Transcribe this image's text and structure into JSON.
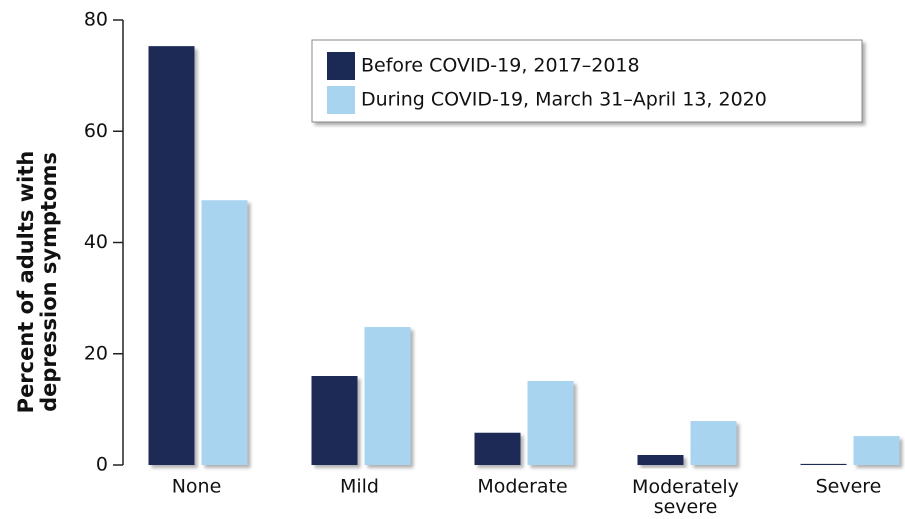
{
  "chart_data": {
    "type": "bar",
    "ylabel": [
      "Percent of adults with",
      "depression symptoms"
    ],
    "categories": [
      "None",
      "Mild",
      "Moderate",
      "Moderately severe",
      "Severe"
    ],
    "series": [
      {
        "name": "Before COVID-19, 2017–2018",
        "color": "#1b2a55",
        "values": [
          75.3,
          16.0,
          5.8,
          1.8,
          0.2
        ]
      },
      {
        "name": "During COVID-19, March 31–April 13, 2020",
        "color": "#a8d4f0",
        "values": [
          47.6,
          24.8,
          15.1,
          7.9,
          5.2
        ]
      }
    ],
    "ylim": [
      0,
      80
    ],
    "yticks": [
      0,
      20,
      40,
      60,
      80
    ],
    "legend": "upper right"
  }
}
